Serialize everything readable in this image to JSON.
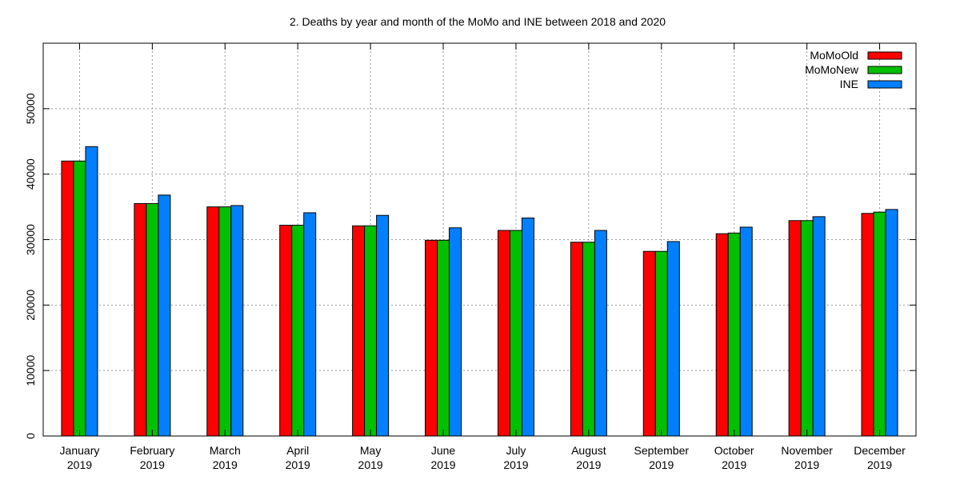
{
  "chart_data": {
    "type": "bar",
    "title": "2. Deaths by year and month of the MoMo and INE between 2018 and 2020",
    "xlabel": "",
    "ylabel": "",
    "ylim": [
      0,
      60000
    ],
    "yticks": [
      0,
      10000,
      20000,
      30000,
      40000,
      50000
    ],
    "grid": true,
    "legend_position": "top-right",
    "categories": [
      [
        "January",
        "2019"
      ],
      [
        "February",
        "2019"
      ],
      [
        "March",
        "2019"
      ],
      [
        "April",
        "2019"
      ],
      [
        "May",
        "2019"
      ],
      [
        "June",
        "2019"
      ],
      [
        "July",
        "2019"
      ],
      [
        "August",
        "2019"
      ],
      [
        "September",
        "2019"
      ],
      [
        "October",
        "2019"
      ],
      [
        "November",
        "2019"
      ],
      [
        "December",
        "2019"
      ]
    ],
    "series": [
      {
        "name": "MoMoOld",
        "color": "#ff0000",
        "values": [
          42000,
          35500,
          35000,
          32200,
          32100,
          29900,
          31400,
          29600,
          28200,
          30900,
          32900,
          34000
        ]
      },
      {
        "name": "MoMoNew",
        "color": "#00c000",
        "values": [
          42000,
          35500,
          35000,
          32200,
          32100,
          29900,
          31400,
          29600,
          28200,
          31000,
          32900,
          34200
        ]
      },
      {
        "name": "INE",
        "color": "#0080ff",
        "values": [
          44200,
          36800,
          35200,
          34100,
          33700,
          31800,
          33300,
          31400,
          29700,
          31900,
          33500,
          34600
        ]
      }
    ]
  }
}
